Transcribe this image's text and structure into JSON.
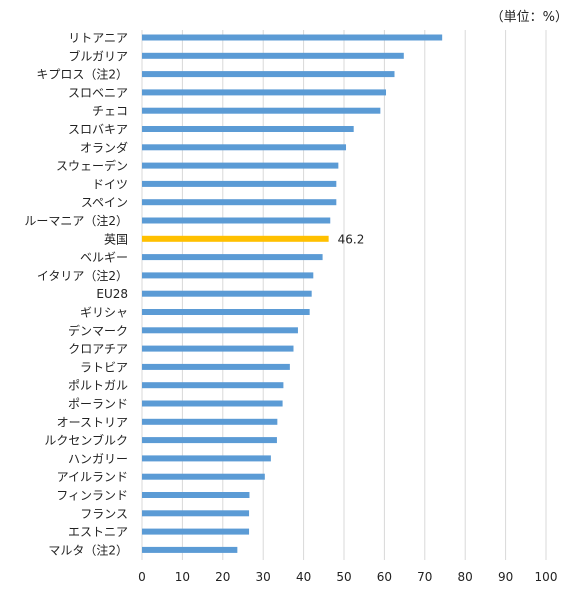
{
  "unit_label": "（単位：%）",
  "colors": {
    "bar": "#5b9bd5",
    "highlight": "#ffc000",
    "grid": "#d9d9d9"
  },
  "chart_data": {
    "type": "bar",
    "orientation": "horizontal",
    "title": "",
    "xlabel": "",
    "ylabel": "",
    "xlim": [
      0,
      100
    ],
    "xticks": [
      "0",
      "10",
      "20",
      "30",
      "40",
      "50",
      "60",
      "70",
      "80",
      "90",
      "100"
    ],
    "grid": true,
    "highlight_category": "英国",
    "data_labels": [
      {
        "category": "英国",
        "text": "46.2"
      }
    ],
    "categories": [
      "リトアニア",
      "ブルガリア",
      "キプロス（注2）",
      "スロベニア",
      "チェコ",
      "スロバキア",
      "オランダ",
      "スウェーデン",
      "ドイツ",
      "スペイン",
      "ルーマニア（注2）",
      "英国",
      "ベルギー",
      "イタリア（注2）",
      "EU28",
      "ギリシャ",
      "デンマーク",
      "クロアチア",
      "ラトビア",
      "ポルトガル",
      "ポーランド",
      "オーストリア",
      "ルクセンブルク",
      "ハンガリー",
      "アイルランド",
      "フィンランド",
      "フランス",
      "エストニア",
      "マルタ（注2）"
    ],
    "values": [
      74.3,
      64.8,
      62.5,
      60.4,
      59.0,
      52.4,
      50.5,
      48.6,
      48.1,
      48.1,
      46.6,
      46.2,
      44.7,
      42.4,
      42.0,
      41.5,
      38.6,
      37.5,
      36.6,
      35.0,
      34.8,
      33.5,
      33.4,
      31.9,
      30.4,
      26.6,
      26.5,
      26.5,
      23.6
    ]
  }
}
